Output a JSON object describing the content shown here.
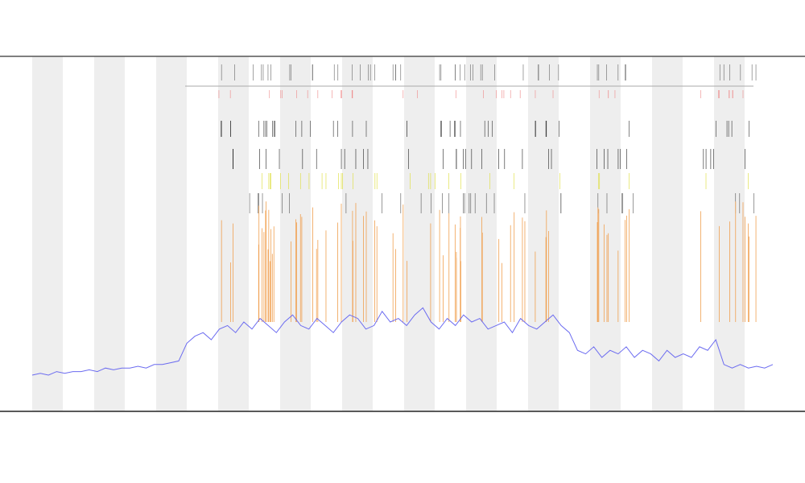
{
  "chart_data": {
    "type": "line",
    "ylim": [
      0,
      100
    ],
    "series": [
      {
        "color": "#6b6bf0",
        "values": [
          10,
          10.5,
          10,
          11,
          10.5,
          11,
          11,
          11.5,
          11,
          12,
          11.5,
          12,
          12,
          12.5,
          12,
          13,
          13,
          13.5,
          14,
          19,
          21,
          22,
          20,
          23,
          24,
          22,
          25,
          23,
          26,
          24,
          22,
          25,
          27,
          24,
          23,
          26,
          24,
          22,
          25,
          27,
          26,
          23,
          24,
          28,
          25,
          26,
          24,
          27,
          29,
          25,
          23,
          26,
          24,
          27,
          25,
          26,
          23,
          24,
          25,
          22,
          26,
          24,
          23,
          25,
          27,
          24,
          22,
          17,
          16,
          18,
          15,
          17,
          16,
          18,
          15,
          17,
          16,
          14,
          17,
          15,
          16,
          15,
          18,
          17,
          20,
          13,
          12,
          13,
          12,
          12.5,
          12,
          13
        ]
      }
    ]
  }
}
